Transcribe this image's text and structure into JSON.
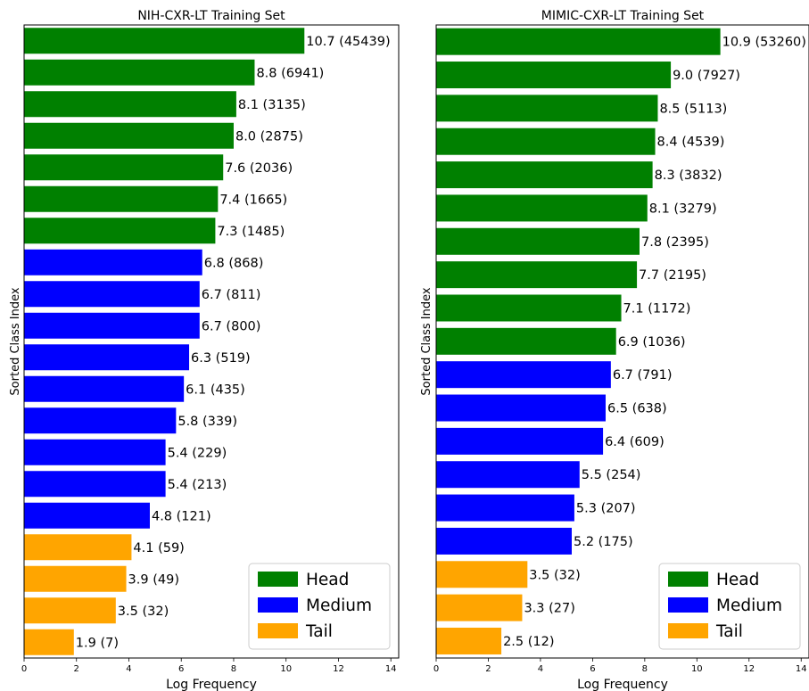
{
  "colors": {
    "Head": "#008000",
    "Medium": "#0000ff",
    "Tail": "#ffa500"
  },
  "chart_data": [
    {
      "type": "bar",
      "orientation": "horizontal",
      "title": "NIH-CXR-LT Training Set",
      "xlabel": "Log Frequency",
      "ylabel": "Sorted Class Index",
      "xlim": [
        0,
        14.3
      ],
      "xticks": [
        0,
        2,
        4,
        6,
        8,
        10,
        12,
        14
      ],
      "grid": false,
      "legend_position": "lower-right",
      "legend": [
        "Head",
        "Medium",
        "Tail"
      ],
      "bars": [
        {
          "value": 10.7,
          "label": "10.7 (45439)",
          "group": "Head"
        },
        {
          "value": 8.8,
          "label": "8.8 (6941)",
          "group": "Head"
        },
        {
          "value": 8.1,
          "label": "8.1 (3135)",
          "group": "Head"
        },
        {
          "value": 8.0,
          "label": "8.0 (2875)",
          "group": "Head"
        },
        {
          "value": 7.6,
          "label": "7.6 (2036)",
          "group": "Head"
        },
        {
          "value": 7.4,
          "label": "7.4 (1665)",
          "group": "Head"
        },
        {
          "value": 7.3,
          "label": "7.3 (1485)",
          "group": "Head"
        },
        {
          "value": 6.8,
          "label": "6.8 (868)",
          "group": "Medium"
        },
        {
          "value": 6.7,
          "label": "6.7 (811)",
          "group": "Medium"
        },
        {
          "value": 6.7,
          "label": "6.7 (800)",
          "group": "Medium"
        },
        {
          "value": 6.3,
          "label": "6.3 (519)",
          "group": "Medium"
        },
        {
          "value": 6.1,
          "label": "6.1 (435)",
          "group": "Medium"
        },
        {
          "value": 5.8,
          "label": "5.8 (339)",
          "group": "Medium"
        },
        {
          "value": 5.4,
          "label": "5.4 (229)",
          "group": "Medium"
        },
        {
          "value": 5.4,
          "label": "5.4 (213)",
          "group": "Medium"
        },
        {
          "value": 4.8,
          "label": "4.8 (121)",
          "group": "Medium"
        },
        {
          "value": 4.1,
          "label": "4.1 (59)",
          "group": "Tail"
        },
        {
          "value": 3.9,
          "label": "3.9 (49)",
          "group": "Tail"
        },
        {
          "value": 3.5,
          "label": "3.5 (32)",
          "group": "Tail"
        },
        {
          "value": 1.9,
          "label": "1.9 (7)",
          "group": "Tail"
        }
      ]
    },
    {
      "type": "bar",
      "orientation": "horizontal",
      "title": "MIMIC-CXR-LT Training Set",
      "xlabel": "Log Frequency",
      "ylabel": "Sorted Class Index",
      "xlim": [
        0,
        14.3
      ],
      "xticks": [
        0,
        2,
        4,
        6,
        8,
        10,
        12,
        14
      ],
      "grid": false,
      "legend_position": "lower-right",
      "legend": [
        "Head",
        "Medium",
        "Tail"
      ],
      "bars": [
        {
          "value": 10.9,
          "label": "10.9 (53260)",
          "group": "Head"
        },
        {
          "value": 9.0,
          "label": "9.0 (7927)",
          "group": "Head"
        },
        {
          "value": 8.5,
          "label": "8.5 (5113)",
          "group": "Head"
        },
        {
          "value": 8.4,
          "label": "8.4 (4539)",
          "group": "Head"
        },
        {
          "value": 8.3,
          "label": "8.3 (3832)",
          "group": "Head"
        },
        {
          "value": 8.1,
          "label": "8.1 (3279)",
          "group": "Head"
        },
        {
          "value": 7.8,
          "label": "7.8 (2395)",
          "group": "Head"
        },
        {
          "value": 7.7,
          "label": "7.7 (2195)",
          "group": "Head"
        },
        {
          "value": 7.1,
          "label": "7.1 (1172)",
          "group": "Head"
        },
        {
          "value": 6.9,
          "label": "6.9 (1036)",
          "group": "Head"
        },
        {
          "value": 6.7,
          "label": "6.7 (791)",
          "group": "Medium"
        },
        {
          "value": 6.5,
          "label": "6.5 (638)",
          "group": "Medium"
        },
        {
          "value": 6.4,
          "label": "6.4 (609)",
          "group": "Medium"
        },
        {
          "value": 5.5,
          "label": "5.5 (254)",
          "group": "Medium"
        },
        {
          "value": 5.3,
          "label": "5.3 (207)",
          "group": "Medium"
        },
        {
          "value": 5.2,
          "label": "5.2 (175)",
          "group": "Medium"
        },
        {
          "value": 3.5,
          "label": "3.5 (32)",
          "group": "Tail"
        },
        {
          "value": 3.3,
          "label": "3.3 (27)",
          "group": "Tail"
        },
        {
          "value": 2.5,
          "label": "2.5 (12)",
          "group": "Tail"
        }
      ]
    }
  ]
}
